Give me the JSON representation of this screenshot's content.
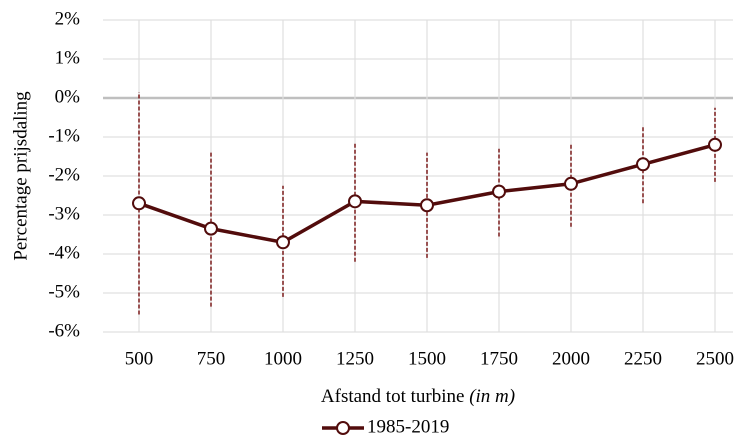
{
  "chart_data": {
    "type": "line",
    "x_label": "Afstand tot turbine",
    "x_label_unit": "(in m)",
    "y_label": "Percentage prijsdaling",
    "categories": [
      "500",
      "750",
      "1000",
      "1250",
      "1500",
      "1750",
      "2000",
      "2250",
      "2500"
    ],
    "series": [
      {
        "name": "1985-2019",
        "color": "#520c0c",
        "values": [
          -2.7,
          -3.35,
          -3.7,
          -2.65,
          -2.75,
          -2.4,
          -2.2,
          -1.7,
          -1.2
        ],
        "lower": [
          -5.55,
          -5.35,
          -5.1,
          -4.2,
          -4.1,
          -3.55,
          -3.3,
          -2.7,
          -2.15
        ],
        "upper": [
          0.15,
          -1.4,
          -2.25,
          -1.15,
          -1.4,
          -1.3,
          -1.2,
          -0.7,
          -0.25
        ],
        "error_color": "#7a1a1a"
      }
    ],
    "ylim": [
      -6,
      2
    ],
    "yticks": [
      {
        "value": -6,
        "label": "-6%"
      },
      {
        "value": -5,
        "label": "-5%"
      },
      {
        "value": -4,
        "label": "-4%"
      },
      {
        "value": -3,
        "label": "-3%"
      },
      {
        "value": -2,
        "label": "-2%"
      },
      {
        "value": -1,
        "label": "-1%"
      },
      {
        "value": 0,
        "label": "0%"
      },
      {
        "value": 1,
        "label": "1%"
      },
      {
        "value": 2,
        "label": "2%"
      }
    ],
    "grid": true,
    "legend": "bottom"
  }
}
